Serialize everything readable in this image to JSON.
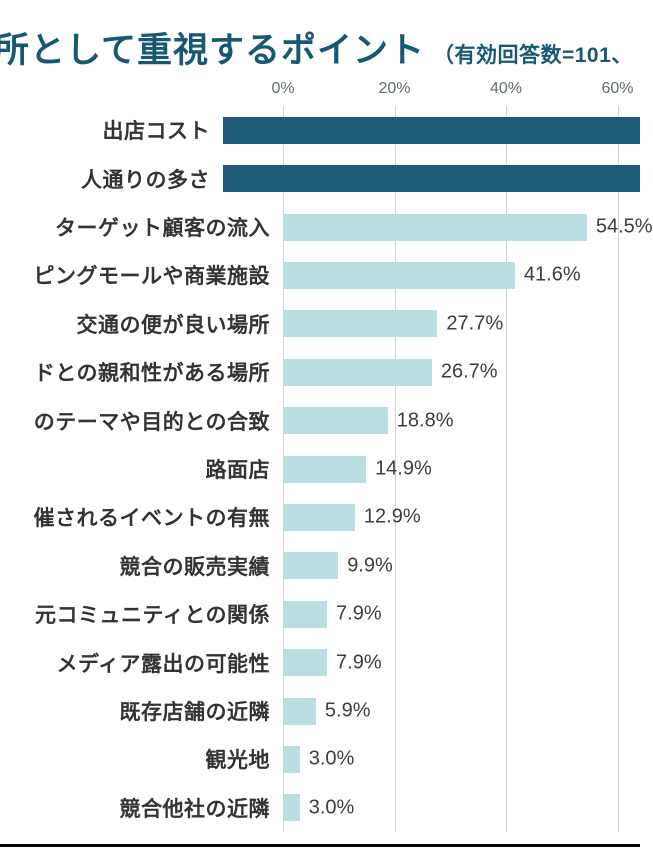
{
  "header": {
    "title": "所として重視するポイント",
    "subtitle": "（有効回答数=101、"
  },
  "colors": {
    "title": "#175873",
    "bar_dark": "#1d5c77",
    "bar_light": "#badde2",
    "gridline": "#d4d4d4",
    "axis_text": "#636d73",
    "category_text": "#333333",
    "value_text": "#3d3d3d",
    "bottom_rule": "#000000"
  },
  "chart_data": {
    "type": "bar",
    "orientation": "horizontal",
    "title": "所として重視するポイント",
    "subtitle": "（有効回答数=101、",
    "x_ticks": [
      {
        "label": "0%",
        "value": 0
      },
      {
        "label": "20%",
        "value": 20
      },
      {
        "label": "40%",
        "value": 40
      },
      {
        "label": "60%",
        "value": 60
      }
    ],
    "xlim_visible": [
      0,
      64
    ],
    "grid": true,
    "categories": [
      "出店コスト",
      "人通りの多さ",
      "ターゲット顧客の流入",
      "ピングモールや商業施設",
      "交通の便が良い場所",
      "ドとの親和性がある場所",
      "のテーマや目的との合致",
      "路面店",
      "催されるイベントの有無",
      "競合の販売実績",
      "元コミュニティとの関係",
      "メディア露出の可能性",
      "既存店舗の近隣",
      "観光地",
      "競合他社の近隣"
    ],
    "values": [
      null,
      null,
      54.5,
      41.6,
      27.7,
      26.7,
      18.8,
      14.9,
      12.9,
      9.9,
      7.9,
      7.9,
      5.9,
      3.0,
      3.0
    ],
    "value_labels": [
      "",
      "",
      "54.5%",
      "41.6%",
      "27.7%",
      "26.7%",
      "18.8%",
      "14.9%",
      "12.9%",
      "9.9%",
      "7.9%",
      "7.9%",
      "5.9%",
      "3.0%",
      "3.0%"
    ],
    "emphasized": [
      true,
      true,
      false,
      false,
      false,
      false,
      false,
      false,
      false,
      false,
      false,
      false,
      false,
      false,
      false
    ],
    "cropped_right": [
      true,
      true,
      false,
      false,
      false,
      false,
      false,
      false,
      false,
      false,
      false,
      false,
      false,
      false,
      false
    ]
  }
}
